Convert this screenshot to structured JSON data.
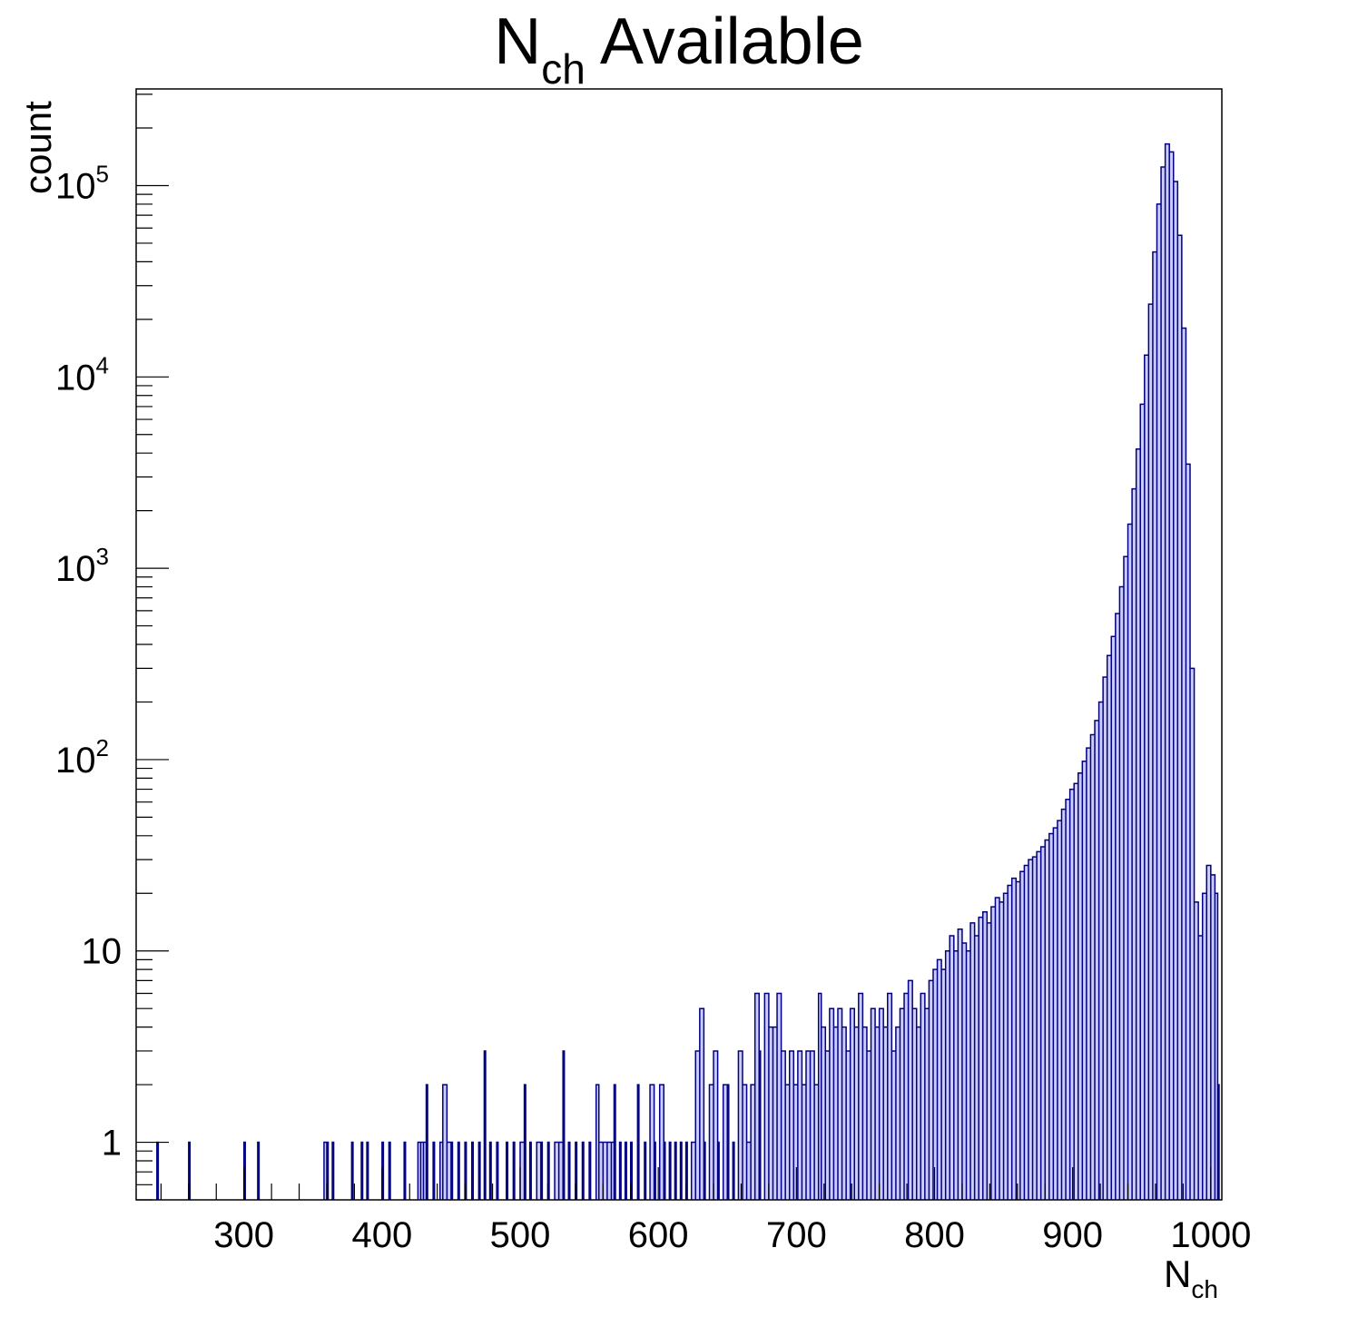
{
  "chart_data": {
    "type": "bar",
    "style": "histogram",
    "title": {
      "base": "N",
      "sub": "ch",
      "rest": " Available"
    },
    "xlabel": {
      "base": "N",
      "sub": "ch"
    },
    "ylabel": "count",
    "xlim": [
      222,
      1008
    ],
    "ylim": [
      0.5,
      320000
    ],
    "yscale": "log",
    "grid": false,
    "x_ticks": [
      {
        "value": 300,
        "label": "300"
      },
      {
        "value": 400,
        "label": "400"
      },
      {
        "value": 500,
        "label": "500"
      },
      {
        "value": 600,
        "label": "600"
      },
      {
        "value": 700,
        "label": "700"
      },
      {
        "value": 800,
        "label": "800"
      },
      {
        "value": 900,
        "label": "900"
      },
      {
        "value": 1000,
        "label": "1000"
      }
    ],
    "y_ticks": [
      {
        "value": 1,
        "base": "1",
        "exp": ""
      },
      {
        "value": 10,
        "base": "10",
        "exp": ""
      },
      {
        "value": 100,
        "base": "10",
        "exp": "2"
      },
      {
        "value": 1000,
        "base": "10",
        "exp": "3"
      },
      {
        "value": 10000,
        "base": "10",
        "exp": "4"
      },
      {
        "value": 100000,
        "base": "10",
        "exp": "5"
      }
    ],
    "colors": {
      "fill": "#ccccff",
      "line": "#000080"
    },
    "bins": [
      [
        237,
        1
      ],
      [
        260,
        1
      ],
      [
        300,
        1
      ],
      [
        310,
        1
      ],
      [
        358,
        1
      ],
      [
        360,
        1
      ],
      [
        364,
        1
      ],
      [
        378,
        1
      ],
      [
        385,
        1
      ],
      [
        389,
        1
      ],
      [
        400,
        1
      ],
      [
        405,
        1
      ],
      [
        416,
        1
      ],
      [
        426,
        1
      ],
      [
        428,
        1
      ],
      [
        430,
        1
      ],
      [
        432,
        2
      ],
      [
        437,
        1
      ],
      [
        442,
        1
      ],
      [
        444,
        2
      ],
      [
        447,
        1
      ],
      [
        450,
        1
      ],
      [
        455,
        1
      ],
      [
        460,
        1
      ],
      [
        465,
        1
      ],
      [
        470,
        1
      ],
      [
        474,
        3
      ],
      [
        478,
        1
      ],
      [
        483,
        1
      ],
      [
        490,
        1
      ],
      [
        495,
        1
      ],
      [
        500,
        1
      ],
      [
        503,
        2
      ],
      [
        507,
        1
      ],
      [
        512,
        1
      ],
      [
        515,
        1
      ],
      [
        520,
        1
      ],
      [
        525,
        1
      ],
      [
        528,
        1
      ],
      [
        531,
        3
      ],
      [
        535,
        1
      ],
      [
        540,
        1
      ],
      [
        545,
        1
      ],
      [
        550,
        1
      ],
      [
        555,
        2
      ],
      [
        557,
        1
      ],
      [
        560,
        1
      ],
      [
        563,
        1
      ],
      [
        566,
        1
      ],
      [
        568,
        2
      ],
      [
        572,
        1
      ],
      [
        576,
        1
      ],
      [
        580,
        1
      ],
      [
        585,
        2
      ],
      [
        590,
        1
      ],
      [
        594,
        2
      ],
      [
        597,
        1
      ],
      [
        601,
        2
      ],
      [
        604,
        1
      ],
      [
        608,
        1
      ],
      [
        612,
        1
      ],
      [
        616,
        1
      ],
      [
        620,
        1
      ],
      [
        624,
        1
      ],
      [
        627,
        3
      ],
      [
        630,
        5
      ],
      [
        633,
        1
      ],
      [
        637,
        2
      ],
      [
        640,
        3
      ],
      [
        643,
        1
      ],
      [
        647,
        2
      ],
      [
        650,
        2
      ],
      [
        654,
        1
      ],
      [
        658,
        3
      ],
      [
        661,
        2
      ],
      [
        664,
        1
      ],
      [
        667,
        2
      ],
      [
        670,
        6
      ],
      [
        673,
        3
      ],
      [
        677,
        6
      ],
      [
        680,
        4
      ],
      [
        683,
        4
      ],
      [
        686,
        6
      ],
      [
        689,
        3
      ],
      [
        692,
        2
      ],
      [
        695,
        3
      ],
      [
        698,
        2
      ],
      [
        701,
        3
      ],
      [
        704,
        2
      ],
      [
        707,
        3
      ],
      [
        710,
        3
      ],
      [
        713,
        2
      ],
      [
        716,
        6
      ],
      [
        718,
        4
      ],
      [
        721,
        3
      ],
      [
        724,
        5
      ],
      [
        727,
        4
      ],
      [
        730,
        5
      ],
      [
        733,
        4
      ],
      [
        736,
        3
      ],
      [
        739,
        5
      ],
      [
        742,
        4
      ],
      [
        745,
        6
      ],
      [
        748,
        4
      ],
      [
        751,
        3
      ],
      [
        754,
        5
      ],
      [
        757,
        4
      ],
      [
        760,
        5
      ],
      [
        763,
        4
      ],
      [
        766,
        6
      ],
      [
        769,
        3
      ],
      [
        772,
        4
      ],
      [
        775,
        5
      ],
      [
        778,
        6
      ],
      [
        781,
        7
      ],
      [
        784,
        5
      ],
      [
        787,
        4
      ],
      [
        790,
        6
      ],
      [
        793,
        5
      ],
      [
        796,
        7
      ],
      [
        799,
        8
      ],
      [
        802,
        9
      ],
      [
        805,
        8
      ],
      [
        808,
        10
      ],
      [
        811,
        12
      ],
      [
        814,
        10
      ],
      [
        817,
        13
      ],
      [
        820,
        11
      ],
      [
        823,
        10
      ],
      [
        826,
        14
      ],
      [
        829,
        12
      ],
      [
        832,
        15
      ],
      [
        835,
        16
      ],
      [
        838,
        14
      ],
      [
        841,
        17
      ],
      [
        844,
        19
      ],
      [
        847,
        18
      ],
      [
        850,
        20
      ],
      [
        853,
        22
      ],
      [
        856,
        24
      ],
      [
        859,
        23
      ],
      [
        862,
        26
      ],
      [
        865,
        28
      ],
      [
        868,
        30
      ],
      [
        871,
        31
      ],
      [
        874,
        33
      ],
      [
        877,
        35
      ],
      [
        880,
        38
      ],
      [
        883,
        41
      ],
      [
        886,
        44
      ],
      [
        889,
        48
      ],
      [
        892,
        55
      ],
      [
        895,
        62
      ],
      [
        898,
        70
      ],
      [
        901,
        75
      ],
      [
        904,
        85
      ],
      [
        907,
        98
      ],
      [
        910,
        115
      ],
      [
        913,
        135
      ],
      [
        916,
        160
      ],
      [
        919,
        200
      ],
      [
        922,
        270
      ],
      [
        925,
        350
      ],
      [
        928,
        440
      ],
      [
        931,
        580
      ],
      [
        934,
        800
      ],
      [
        937,
        1150
      ],
      [
        940,
        1700
      ],
      [
        943,
        2600
      ],
      [
        946,
        4200
      ],
      [
        949,
        7200
      ],
      [
        952,
        13000
      ],
      [
        955,
        24000
      ],
      [
        958,
        45000
      ],
      [
        961,
        80000
      ],
      [
        964,
        125000
      ],
      [
        967,
        165000
      ],
      [
        970,
        150000
      ],
      [
        973,
        105000
      ],
      [
        976,
        55000
      ],
      [
        979,
        18000
      ],
      [
        982,
        3500
      ],
      [
        985,
        300
      ],
      [
        988,
        18
      ],
      [
        991,
        12
      ],
      [
        994,
        20
      ],
      [
        997,
        28
      ],
      [
        1000,
        25
      ],
      [
        1003,
        20
      ],
      [
        1005,
        2
      ]
    ]
  }
}
